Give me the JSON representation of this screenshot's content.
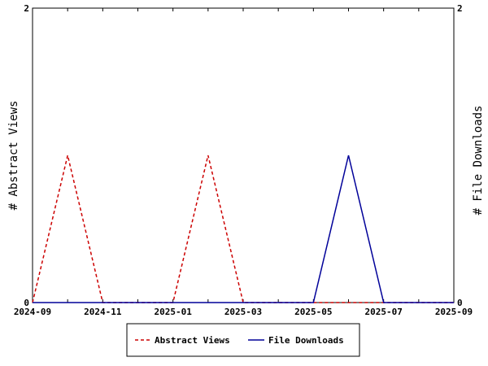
{
  "chart_data": {
    "type": "line",
    "x": [
      "2024-09",
      "2024-10",
      "2024-11",
      "2024-12",
      "2025-01",
      "2025-02",
      "2025-03",
      "2025-04",
      "2025-05",
      "2025-06",
      "2025-07",
      "2025-08",
      "2025-09"
    ],
    "x_tick_labels": [
      "2024-09",
      "2024-11",
      "2025-01",
      "2025-03",
      "2025-05",
      "2025-07",
      "2025-09"
    ],
    "series": [
      {
        "name": "Abstract Views",
        "axis": "left",
        "color": "#cc0000",
        "dash": "dashed",
        "values": [
          0,
          1,
          0,
          0,
          0,
          1,
          0,
          0,
          0,
          0,
          0,
          0,
          0
        ]
      },
      {
        "name": "File Downloads",
        "axis": "right",
        "color": "#000099",
        "dash": "solid",
        "values": [
          0,
          0,
          0,
          0,
          0,
          0,
          0,
          0,
          0,
          1,
          0,
          0,
          0
        ]
      }
    ],
    "ylabel_left": "# Abstract Views",
    "ylabel_right": "# File Downloads",
    "ylim_left": [
      0,
      2
    ],
    "ylim_right": [
      0,
      2
    ],
    "y_ticks_left": [
      "0",
      "2"
    ],
    "y_ticks_right": [
      "0",
      "2"
    ],
    "grid": false,
    "legend_position": "bottom"
  }
}
